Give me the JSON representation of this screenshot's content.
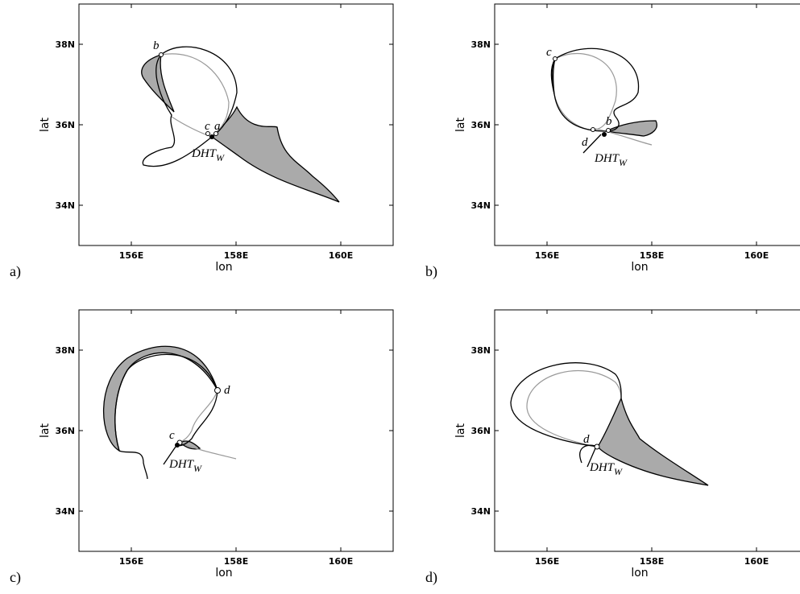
{
  "panels": [
    {
      "label": "a)",
      "xlabel": "lon",
      "ylabel": "lat",
      "xlim": [
        155,
        161
      ],
      "ylim": [
        33,
        39
      ],
      "xticks": [
        {
          "value": 156,
          "label": "156E"
        },
        {
          "value": 158,
          "label": "158E"
        },
        {
          "value": 160,
          "label": "160E"
        }
      ],
      "yticks": [
        {
          "value": 34,
          "label": "34N"
        },
        {
          "value": 36,
          "label": "36N"
        },
        {
          "value": 38,
          "label": "38N"
        }
      ],
      "points": [
        "b",
        "c",
        "a"
      ],
      "dht": {
        "main": "DHT",
        "sub": "W"
      }
    },
    {
      "label": "b)",
      "xlabel": "lon",
      "ylabel": "lat",
      "xlim": [
        155,
        161
      ],
      "ylim": [
        33,
        39
      ],
      "xticks": [
        {
          "value": 156,
          "label": "156E"
        },
        {
          "value": 158,
          "label": "158E"
        },
        {
          "value": 160,
          "label": "160E"
        }
      ],
      "yticks": [
        {
          "value": 34,
          "label": "34N"
        },
        {
          "value": 36,
          "label": "36N"
        },
        {
          "value": 38,
          "label": "38N"
        }
      ],
      "points": [
        "c",
        "d",
        "b"
      ],
      "dht": {
        "main": "DHT",
        "sub": "W"
      }
    },
    {
      "label": "c)",
      "xlabel": "lon",
      "ylabel": "lat",
      "xlim": [
        155,
        161
      ],
      "ylim": [
        33,
        39
      ],
      "xticks": [
        {
          "value": 156,
          "label": "156E"
        },
        {
          "value": 158,
          "label": "158E"
        },
        {
          "value": 160,
          "label": "160E"
        }
      ],
      "yticks": [
        {
          "value": 34,
          "label": "34N"
        },
        {
          "value": 36,
          "label": "36N"
        },
        {
          "value": 38,
          "label": "38N"
        }
      ],
      "points": [
        "d",
        "c"
      ],
      "dht": {
        "main": "DHT",
        "sub": "W"
      }
    },
    {
      "label": "d)",
      "xlabel": "lon",
      "ylabel": "lat",
      "xlim": [
        155,
        161
      ],
      "ylim": [
        33,
        39
      ],
      "xticks": [
        {
          "value": 156,
          "label": "156E"
        },
        {
          "value": 158,
          "label": "158E"
        },
        {
          "value": 160,
          "label": "160E"
        }
      ],
      "yticks": [
        {
          "value": 34,
          "label": "34N"
        },
        {
          "value": 36,
          "label": "36N"
        },
        {
          "value": 38,
          "label": "38N"
        }
      ],
      "points": [
        "d"
      ],
      "dht": {
        "main": "DHT",
        "sub": "W"
      }
    }
  ]
}
